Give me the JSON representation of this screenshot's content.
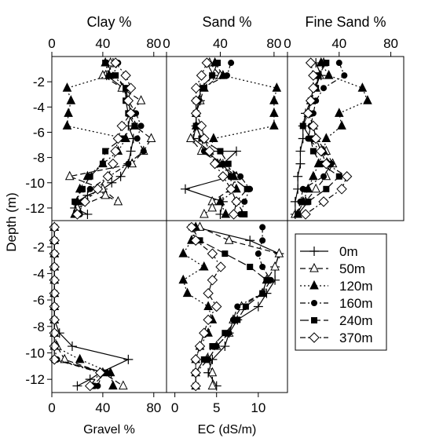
{
  "y_axis_label": "Depth (m)",
  "depth_ticks": [
    -2,
    -4,
    -6,
    -8,
    -10,
    -12
  ],
  "legend": [
    {
      "label": "0m",
      "marker": "plus",
      "dash": "solid"
    },
    {
      "label": "50m",
      "marker": "triangle-open",
      "dash": "dashed"
    },
    {
      "label": "120m",
      "marker": "triangle-filled",
      "dash": "dotted"
    },
    {
      "label": "160m",
      "marker": "circle-filled",
      "dash": "dashdot"
    },
    {
      "label": "240m",
      "marker": "square-filled",
      "dash": "longdash"
    },
    {
      "label": "370m",
      "marker": "diamond-open",
      "dash": "dashdot"
    }
  ],
  "chart_data": [
    {
      "type": "line",
      "title": "Clay %",
      "xlabel": "",
      "xlim": [
        0,
        90
      ],
      "xticks": [
        0,
        40,
        80
      ],
      "ylim": [
        -13,
        0
      ],
      "series": [
        {
          "name": "0m",
          "x": [
            48,
            43,
            56,
            60,
            62,
            60,
            64,
            62,
            60,
            54,
            47,
            40,
            28,
            20,
            18,
            28
          ],
          "y": [
            -0.5,
            -1.5,
            -2.5,
            -3.5,
            -4.5,
            -5.5,
            -6.5,
            -7.5,
            -8.5,
            -9.5,
            -10,
            -10.5,
            -11,
            -11.5,
            -12,
            -12.5
          ]
        },
        {
          "name": "50m",
          "x": [
            46,
            40,
            55,
            70,
            62,
            65,
            78,
            72,
            63,
            14,
            40,
            52,
            42,
            20,
            18
          ],
          "y": [
            -0.5,
            -1.5,
            -2.5,
            -3.5,
            -4.5,
            -5.5,
            -6.5,
            -7.5,
            -8.5,
            -9.5,
            -10.5,
            -11.5,
            -11,
            -12,
            -12.5
          ]
        },
        {
          "name": "120m",
          "x": [
            42,
            45,
            12,
            15,
            13,
            12,
            58,
            52,
            40,
            28,
            22,
            20,
            18
          ],
          "y": [
            -0.5,
            -1.5,
            -2.5,
            -3.5,
            -4.5,
            -5.5,
            -6.5,
            -7.5,
            -8.5,
            -9.5,
            -10.5,
            -11.5,
            -12.5
          ]
        },
        {
          "name": "160m",
          "x": [
            52,
            48,
            58,
            60,
            66,
            70,
            67,
            72,
            60,
            45,
            30,
            24,
            22
          ],
          "y": [
            -0.5,
            -1.5,
            -2.5,
            -3.5,
            -4.5,
            -5.5,
            -6.5,
            -7.5,
            -8.5,
            -9.5,
            -10.5,
            -11.5,
            -12.5
          ]
        },
        {
          "name": "240m",
          "x": [
            42,
            50,
            58,
            58,
            60,
            65,
            55,
            42,
            40,
            30,
            24,
            18,
            20
          ],
          "y": [
            -0.5,
            -1.5,
            -2.5,
            -3.5,
            -4.5,
            -5.5,
            -6.5,
            -7.5,
            -8.5,
            -9.5,
            -10.5,
            -11.5,
            -12.5
          ]
        },
        {
          "name": "370m",
          "x": [
            50,
            58,
            62,
            60,
            62,
            55,
            52,
            50,
            48,
            44,
            36,
            26,
            20
          ],
          "y": [
            -0.5,
            -1.5,
            -2.5,
            -3.5,
            -4.5,
            -5.5,
            -6.5,
            -7.5,
            -8.5,
            -9.5,
            -10.5,
            -11.5,
            -12.5
          ]
        }
      ]
    },
    {
      "type": "line",
      "title": "Sand %",
      "xlabel": "",
      "xlim": [
        0,
        90
      ],
      "xticks": [
        0,
        40,
        80
      ],
      "ylim": [
        -13,
        0
      ],
      "series": [
        {
          "name": "0m",
          "x": [
            30,
            35,
            25,
            25,
            22,
            22,
            20,
            32,
            52,
            42,
            48,
            14,
            42,
            40
          ],
          "y": [
            -0.5,
            -1.5,
            -2.5,
            -3.5,
            -4.5,
            -5.5,
            -6.5,
            -7.5,
            -7.5,
            -8.5,
            -9.5,
            -10.5,
            -11.5,
            -12.5
          ]
        },
        {
          "name": "50m",
          "x": [
            32,
            40,
            28,
            25,
            22,
            22,
            18,
            26,
            40,
            52,
            48,
            34,
            34,
            28
          ],
          "y": [
            -0.5,
            -1.5,
            -2.5,
            -3.5,
            -4.5,
            -5.5,
            -6.5,
            -7.5,
            -8.5,
            -9.5,
            -10.5,
            -11.5,
            -12,
            -12.5
          ]
        },
        {
          "name": "120m",
          "x": [
            36,
            42,
            82,
            80,
            80,
            80,
            35,
            32,
            38,
            50,
            52,
            40,
            44
          ],
          "y": [
            -0.5,
            -1.5,
            -2.5,
            -3.5,
            -4.5,
            -5.5,
            -6.5,
            -7.5,
            -8.5,
            -9.5,
            -10.5,
            -11.5,
            -12.5
          ]
        },
        {
          "name": "160m",
          "x": [
            48,
            45,
            26,
            24,
            22,
            22,
            26,
            28,
            42,
            55,
            62,
            58,
            55
          ],
          "y": [
            -0.5,
            -1.5,
            -2.5,
            -3.5,
            -4.5,
            -5.5,
            -6.5,
            -7.5,
            -8.5,
            -9.5,
            -10.5,
            -11.5,
            -12.5
          ]
        },
        {
          "name": "240m",
          "x": [
            38,
            34,
            28,
            22,
            22,
            22,
            26,
            40,
            46,
            48,
            60,
            52,
            58
          ],
          "y": [
            -0.5,
            -1.5,
            -2.5,
            -3.5,
            -4.5,
            -5.5,
            -6.5,
            -7.5,
            -8.5,
            -9.5,
            -10.5,
            -11.5,
            -12.5
          ]
        },
        {
          "name": "370m",
          "x": [
            30,
            26,
            22,
            22,
            22,
            26,
            28,
            32,
            36,
            42,
            48,
            52,
            50
          ],
          "y": [
            -0.5,
            -1.5,
            -2.5,
            -3.5,
            -4.5,
            -5.5,
            -6.5,
            -7.5,
            -8.5,
            -9.5,
            -10.5,
            -11.5,
            -12.5
          ]
        }
      ]
    },
    {
      "type": "line",
      "title": "Fine Sand %",
      "xlabel": "",
      "xlim": [
        0,
        90
      ],
      "xticks": [
        0,
        40,
        80
      ],
      "ylim": [
        -13,
        0
      ],
      "series": [
        {
          "name": "0m",
          "x": [
            22,
            26,
            20,
            18,
            14,
            12,
            12,
            10,
            10,
            8,
            8,
            6,
            6
          ],
          "y": [
            -0.5,
            -1.5,
            -2.5,
            -3.5,
            -4.5,
            -5.5,
            -6.5,
            -7.5,
            -8.5,
            -9.5,
            -10.5,
            -11.5,
            -12.5
          ]
        },
        {
          "name": "50m",
          "x": [
            28,
            25,
            22,
            18,
            16,
            20,
            22,
            30,
            35,
            30,
            22,
            14,
            6
          ],
          "y": [
            -0.5,
            -1.5,
            -2.5,
            -3.5,
            -4.5,
            -5.5,
            -6.5,
            -7.5,
            -8.5,
            -9.5,
            -10.5,
            -11.5,
            -12.5
          ]
        },
        {
          "name": "120m",
          "x": [
            26,
            32,
            58,
            62,
            40,
            42,
            30,
            28,
            24,
            20,
            16,
            12,
            8
          ],
          "y": [
            -0.5,
            -1.5,
            -2.5,
            -3.5,
            -4.5,
            -5.5,
            -6.5,
            -7.5,
            -8.5,
            -9.5,
            -10.5,
            -11.5,
            -12.5
          ]
        },
        {
          "name": "160m",
          "x": [
            40,
            44,
            28,
            22,
            20,
            18,
            16,
            26,
            34,
            28,
            12,
            10,
            8
          ],
          "y": [
            -0.5,
            -1.5,
            -2.5,
            -3.5,
            -4.5,
            -5.5,
            -6.5,
            -7.5,
            -8.5,
            -9.5,
            -10.5,
            -11.5,
            -12.5
          ]
        },
        {
          "name": "240m",
          "x": [
            30,
            24,
            22,
            18,
            16,
            12,
            18,
            20,
            26,
            40,
            30,
            16,
            8
          ],
          "y": [
            -0.5,
            -1.5,
            -2.5,
            -3.5,
            -4.5,
            -5.5,
            -6.5,
            -7.5,
            -8.5,
            -9.5,
            -10.5,
            -11.5,
            -12.5
          ]
        },
        {
          "name": "370m",
          "x": [
            18,
            20,
            20,
            18,
            16,
            20,
            22,
            26,
            30,
            46,
            42,
            28,
            14
          ],
          "y": [
            -0.5,
            -1.5,
            -2.5,
            -3.5,
            -4.5,
            -5.5,
            -6.5,
            -7.5,
            -8.5,
            -9.5,
            -10.5,
            -11.5,
            -12.5
          ]
        }
      ]
    },
    {
      "type": "line",
      "title": "",
      "xlabel": "Gravel %",
      "xlim": [
        0,
        90
      ],
      "xticks": [
        0,
        40,
        80
      ],
      "ylim": [
        -13,
        0
      ],
      "series": [
        {
          "name": "0m",
          "x": [
            2,
            2,
            2,
            2,
            2,
            2,
            2,
            2,
            6,
            16,
            60,
            38,
            30,
            20
          ],
          "y": [
            -0.5,
            -1.5,
            -2.5,
            -3.5,
            -4.5,
            -5.5,
            -6.5,
            -7.5,
            -8.5,
            -9.5,
            -10.5,
            -11.5,
            -12,
            -12.5
          ]
        },
        {
          "name": "50m",
          "x": [
            2,
            2,
            2,
            2,
            2,
            2,
            2,
            2,
            2,
            4,
            10,
            40,
            56
          ],
          "y": [
            -0.5,
            -1.5,
            -2.5,
            -3.5,
            -4.5,
            -5.5,
            -6.5,
            -7.5,
            -8.5,
            -9.5,
            -10.5,
            -11.5,
            -12.5
          ]
        },
        {
          "name": "120m",
          "x": [
            2,
            2,
            2,
            2,
            2,
            2,
            2,
            2,
            2,
            2,
            22,
            46,
            48
          ],
          "y": [
            -0.5,
            -1.5,
            -2.5,
            -3.5,
            -4.5,
            -5.5,
            -6.5,
            -7.5,
            -8.5,
            -9.5,
            -10.5,
            -11.5,
            -12.5
          ]
        },
        {
          "name": "160m",
          "x": [
            2,
            2,
            2,
            2,
            2,
            2,
            2,
            2,
            2,
            2,
            4,
            40,
            36
          ],
          "y": [
            -0.5,
            -1.5,
            -2.5,
            -3.5,
            -4.5,
            -5.5,
            -6.5,
            -7.5,
            -8.5,
            -9.5,
            -10.5,
            -11.5,
            -12.5
          ]
        },
        {
          "name": "240m",
          "x": [
            2,
            2,
            2,
            2,
            2,
            2,
            2,
            2,
            2,
            2,
            2,
            42,
            32
          ],
          "y": [
            -0.5,
            -1.5,
            -2.5,
            -3.5,
            -4.5,
            -5.5,
            -6.5,
            -7.5,
            -8.5,
            -9.5,
            -10.5,
            -11.5,
            -12.5
          ]
        },
        {
          "name": "370m",
          "x": [
            2,
            2,
            2,
            2,
            2,
            2,
            2,
            2,
            2,
            2,
            2,
            38,
            30
          ],
          "y": [
            -0.5,
            -1.5,
            -2.5,
            -3.5,
            -4.5,
            -5.5,
            -6.5,
            -7.5,
            -8.5,
            -9.5,
            -10.5,
            -11.5,
            -12.5
          ]
        }
      ]
    },
    {
      "type": "line",
      "title": "",
      "xlabel": "EC (dS/m)",
      "xlim": [
        -1,
        13.5
      ],
      "xticks": [
        0,
        5,
        10
      ],
      "ylim": [
        -13,
        0
      ],
      "series": [
        {
          "name": "0m",
          "x": [
            2.5,
            9,
            12.5,
            12,
            12,
            11,
            10,
            7.5,
            6.5,
            6,
            4.5,
            4,
            5
          ],
          "y": [
            -0.5,
            -1.5,
            -2.5,
            -3.5,
            -4.5,
            -5.5,
            -6.5,
            -7.5,
            -8.5,
            -9.5,
            -10.5,
            -11.5,
            -12.5
          ]
        },
        {
          "name": "50m",
          "x": [
            3,
            6.5,
            12.5,
            12,
            11,
            10.5,
            8,
            7,
            6.5,
            5,
            4,
            4.5,
            4.5
          ],
          "y": [
            -0.5,
            -1.5,
            -2.5,
            -3.5,
            -4.5,
            -5.5,
            -6.5,
            -7.5,
            -8.5,
            -9.5,
            -10.5,
            -11.5,
            -12.5
          ]
        },
        {
          "name": "120m",
          "x": [
            2.5,
            2,
            1,
            3.5,
            1,
            1.5,
            4,
            4.5,
            4,
            3,
            2.5,
            2.5,
            2.5
          ],
          "y": [
            -0.5,
            -1.5,
            -2.5,
            -3.5,
            -4.5,
            -5.5,
            -6.5,
            -7.5,
            -8.5,
            -9.5,
            -10.5,
            -11.5,
            -12.5
          ]
        },
        {
          "name": "160m",
          "x": [
            10.5,
            10.5,
            10,
            10.5,
            11.5,
            10.5,
            7.5,
            7,
            6.5,
            5,
            4,
            2.5,
            2.5
          ],
          "y": [
            -0.5,
            -1.5,
            -2.5,
            -3.5,
            -4.5,
            -5.5,
            -6.5,
            -7.5,
            -8.5,
            -9.5,
            -10.5,
            -11.5,
            -12.5
          ]
        },
        {
          "name": "240m",
          "x": [
            2,
            3,
            6,
            9,
            11,
            10.5,
            8.5,
            7.5,
            6,
            4.5,
            3.5,
            2.5,
            2.5
          ],
          "y": [
            -0.5,
            -1.5,
            -2.5,
            -3.5,
            -4.5,
            -5.5,
            -6.5,
            -7.5,
            -8.5,
            -9.5,
            -10.5,
            -11.5,
            -12.5
          ]
        },
        {
          "name": "370m",
          "x": [
            2,
            2.5,
            4.5,
            5.5,
            4.5,
            4,
            5,
            4,
            3.5,
            3,
            2.5,
            2.5,
            2.5
          ],
          "y": [
            -0.5,
            -1.5,
            -2.5,
            -3.5,
            -4.5,
            -5.5,
            -6.5,
            -7.5,
            -8.5,
            -9.5,
            -10.5,
            -11.5,
            -12.5
          ]
        }
      ]
    }
  ]
}
